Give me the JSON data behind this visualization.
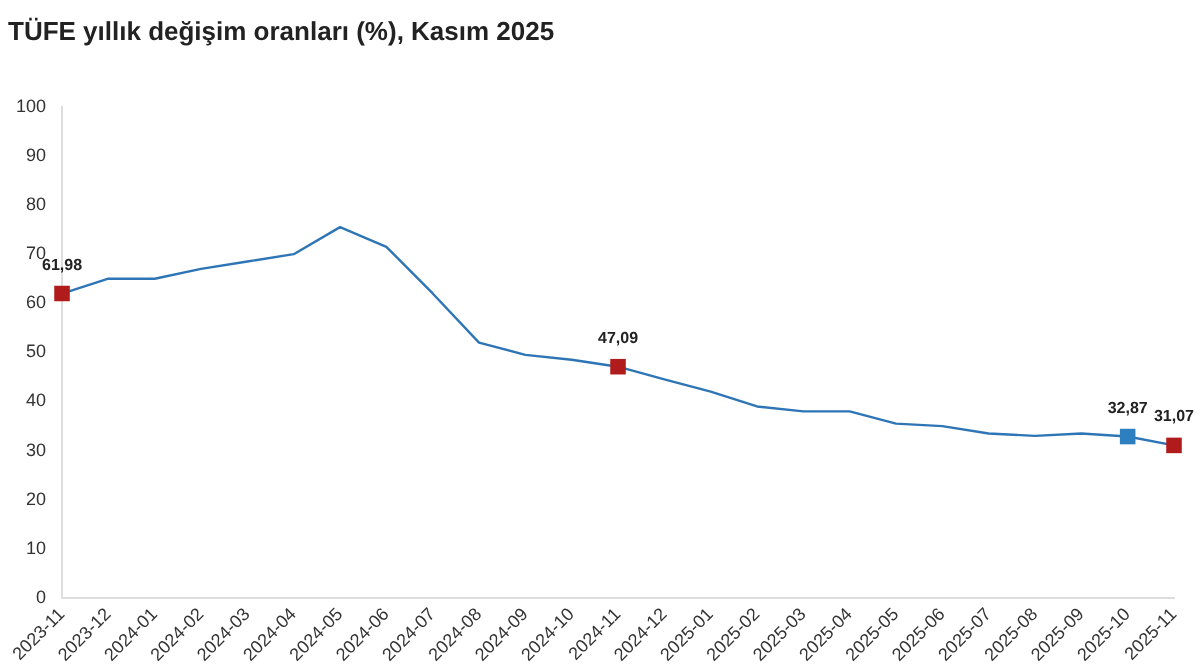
{
  "chart_data": {
    "type": "line",
    "title": "TÜFE yıllık değişim oranları (%), Kasım 2025",
    "categories": [
      "2023-11",
      "2023-12",
      "2024-01",
      "2024-02",
      "2024-03",
      "2024-04",
      "2024-05",
      "2024-06",
      "2024-07",
      "2024-08",
      "2024-09",
      "2024-10",
      "2024-11",
      "2024-12",
      "2025-01",
      "2025-02",
      "2025-03",
      "2025-04",
      "2025-05",
      "2025-06",
      "2025-07",
      "2025-08",
      "2025-09",
      "2025-10",
      "2025-11"
    ],
    "series": [
      {
        "color": "#2e75b6",
        "marker": "none",
        "values": [
          61.98,
          65,
          65,
          67,
          68.5,
          70,
          75.5,
          71.5,
          62,
          52,
          49.5,
          48.5,
          47.09,
          44.5,
          42,
          39,
          38,
          38,
          35.5,
          35,
          33.5,
          33,
          33.5,
          32.87,
          31.07
        ]
      },
      {
        "type": "scatter",
        "marker": "square",
        "values": [
          61.98,
          null,
          null,
          null,
          null,
          null,
          null,
          null,
          null,
          null,
          null,
          null,
          47.09,
          null,
          null,
          null,
          null,
          null,
          null,
          null,
          null,
          null,
          null,
          32.87,
          31.07
        ],
        "colors": [
          "#b01c1c",
          null,
          null,
          null,
          null,
          null,
          null,
          null,
          null,
          null,
          null,
          null,
          "#b01c1c",
          null,
          null,
          null,
          null,
          null,
          null,
          null,
          null,
          null,
          null,
          "#2e7fc0",
          "#b01c1c"
        ],
        "value_labels": [
          "61,98",
          null,
          null,
          null,
          null,
          null,
          null,
          null,
          null,
          null,
          null,
          null,
          "47,09",
          null,
          null,
          null,
          null,
          null,
          null,
          null,
          null,
          null,
          null,
          "32,87",
          "31,07"
        ]
      }
    ],
    "ylim": [
      0,
      100
    ],
    "yticks": [
      0,
      10,
      20,
      30,
      40,
      50,
      60,
      70,
      80,
      90,
      100
    ],
    "grid": false,
    "legend": false,
    "line_style": "solid"
  }
}
